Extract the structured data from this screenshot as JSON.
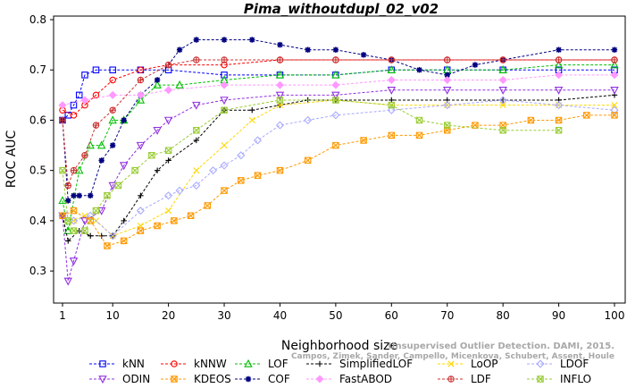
{
  "chart_data": {
    "type": "line",
    "title": "Pima_withoutdupl_02_v02",
    "xlabel": "Neighborhood size",
    "ylabel": "ROC AUC",
    "xlim": [
      1,
      100
    ],
    "ylim": [
      0.27,
      0.8
    ],
    "xticks": [
      "1",
      "10",
      "20",
      "30",
      "40",
      "50",
      "60",
      "70",
      "80",
      "90",
      "100"
    ],
    "yticks": [
      "0.3",
      "0.4",
      "0.5",
      "0.6",
      "0.7",
      "0.8"
    ],
    "credit_line1": "Unsupervised Outlier Detection. DAMI, 2015.",
    "credit_line2": "Campos, Zimek, Sander, Campello, Micenkova, Schubert, Assent, Houle",
    "series": [
      {
        "name": "kNN",
        "color": "#0000ff",
        "marker": "square",
        "points": [
          [
            1,
            0.6
          ],
          [
            2,
            0.61
          ],
          [
            3,
            0.63
          ],
          [
            4,
            0.65
          ],
          [
            5,
            0.69
          ],
          [
            7,
            0.7
          ],
          [
            10,
            0.7
          ],
          [
            15,
            0.7
          ],
          [
            20,
            0.7
          ],
          [
            30,
            0.69
          ],
          [
            40,
            0.69
          ],
          [
            50,
            0.69
          ],
          [
            60,
            0.7
          ],
          [
            70,
            0.7
          ],
          [
            80,
            0.7
          ],
          [
            90,
            0.7
          ],
          [
            100,
            0.7
          ]
        ]
      },
      {
        "name": "kNNW",
        "color": "#ff0000",
        "marker": "circle",
        "points": [
          [
            1,
            0.62
          ],
          [
            3,
            0.61
          ],
          [
            5,
            0.63
          ],
          [
            7,
            0.65
          ],
          [
            10,
            0.68
          ],
          [
            15,
            0.7
          ],
          [
            20,
            0.71
          ],
          [
            30,
            0.71
          ],
          [
            40,
            0.72
          ],
          [
            50,
            0.72
          ],
          [
            60,
            0.72
          ],
          [
            70,
            0.72
          ],
          [
            80,
            0.72
          ],
          [
            90,
            0.72
          ],
          [
            100,
            0.72
          ]
        ]
      },
      {
        "name": "LOF",
        "color": "#00c000",
        "marker": "triangle-up",
        "points": [
          [
            1,
            0.44
          ],
          [
            2,
            0.38
          ],
          [
            4,
            0.5
          ],
          [
            6,
            0.55
          ],
          [
            8,
            0.55
          ],
          [
            10,
            0.6
          ],
          [
            12,
            0.6
          ],
          [
            15,
            0.64
          ],
          [
            18,
            0.67
          ],
          [
            22,
            0.67
          ],
          [
            30,
            0.68
          ],
          [
            40,
            0.69
          ],
          [
            50,
            0.69
          ],
          [
            60,
            0.7
          ],
          [
            70,
            0.7
          ],
          [
            80,
            0.7
          ],
          [
            90,
            0.71
          ],
          [
            100,
            0.71
          ]
        ]
      },
      {
        "name": "SimplifiedLOF",
        "color": "#000000",
        "marker": "plus",
        "points": [
          [
            1,
            0.41
          ],
          [
            2,
            0.36
          ],
          [
            4,
            0.38
          ],
          [
            6,
            0.37
          ],
          [
            8,
            0.37
          ],
          [
            10,
            0.37
          ],
          [
            12,
            0.4
          ],
          [
            15,
            0.45
          ],
          [
            18,
            0.5
          ],
          [
            20,
            0.52
          ],
          [
            25,
            0.56
          ],
          [
            30,
            0.62
          ],
          [
            35,
            0.62
          ],
          [
            40,
            0.63
          ],
          [
            45,
            0.64
          ],
          [
            50,
            0.64
          ],
          [
            60,
            0.64
          ],
          [
            70,
            0.64
          ],
          [
            80,
            0.64
          ],
          [
            90,
            0.64
          ],
          [
            100,
            0.65
          ]
        ]
      },
      {
        "name": "LoOP",
        "color": "#ffd700",
        "marker": "x",
        "points": [
          [
            1,
            0.41
          ],
          [
            3,
            0.4
          ],
          [
            5,
            0.41
          ],
          [
            7,
            0.4
          ],
          [
            10,
            0.37
          ],
          [
            15,
            0.39
          ],
          [
            20,
            0.42
          ],
          [
            25,
            0.5
          ],
          [
            30,
            0.55
          ],
          [
            35,
            0.6
          ],
          [
            40,
            0.63
          ],
          [
            50,
            0.64
          ],
          [
            60,
            0.63
          ],
          [
            70,
            0.63
          ],
          [
            80,
            0.63
          ],
          [
            90,
            0.63
          ],
          [
            100,
            0.63
          ]
        ]
      },
      {
        "name": "LDOF",
        "color": "#aaaaff",
        "marker": "diamond",
        "points": [
          [
            1,
            0.41
          ],
          [
            3,
            0.4
          ],
          [
            6,
            0.41
          ],
          [
            10,
            0.37
          ],
          [
            15,
            0.42
          ],
          [
            20,
            0.45
          ],
          [
            22,
            0.46
          ],
          [
            25,
            0.47
          ],
          [
            28,
            0.5
          ],
          [
            30,
            0.51
          ],
          [
            33,
            0.53
          ],
          [
            36,
            0.56
          ],
          [
            40,
            0.59
          ],
          [
            45,
            0.6
          ],
          [
            50,
            0.61
          ],
          [
            60,
            0.62
          ],
          [
            70,
            0.63
          ],
          [
            80,
            0.64
          ],
          [
            90,
            0.63
          ],
          [
            100,
            0.62
          ]
        ]
      },
      {
        "name": "ODIN",
        "color": "#9030e0",
        "marker": "triangle-down",
        "points": [
          [
            1,
            0.41
          ],
          [
            2,
            0.28
          ],
          [
            3,
            0.32
          ],
          [
            5,
            0.4
          ],
          [
            8,
            0.42
          ],
          [
            10,
            0.47
          ],
          [
            12,
            0.51
          ],
          [
            15,
            0.55
          ],
          [
            18,
            0.58
          ],
          [
            20,
            0.6
          ],
          [
            25,
            0.63
          ],
          [
            30,
            0.64
          ],
          [
            40,
            0.65
          ],
          [
            50,
            0.65
          ],
          [
            60,
            0.66
          ],
          [
            70,
            0.66
          ],
          [
            80,
            0.66
          ],
          [
            90,
            0.66
          ],
          [
            100,
            0.66
          ]
        ]
      },
      {
        "name": "KDEOS",
        "color": "#ff9900",
        "marker": "square-x",
        "points": [
          [
            1,
            0.41
          ],
          [
            3,
            0.42
          ],
          [
            6,
            0.4
          ],
          [
            9,
            0.35
          ],
          [
            12,
            0.36
          ],
          [
            15,
            0.38
          ],
          [
            18,
            0.39
          ],
          [
            21,
            0.4
          ],
          [
            24,
            0.41
          ],
          [
            27,
            0.43
          ],
          [
            30,
            0.46
          ],
          [
            33,
            0.48
          ],
          [
            36,
            0.49
          ],
          [
            40,
            0.5
          ],
          [
            45,
            0.52
          ],
          [
            50,
            0.55
          ],
          [
            55,
            0.56
          ],
          [
            60,
            0.57
          ],
          [
            65,
            0.57
          ],
          [
            70,
            0.58
          ],
          [
            75,
            0.59
          ],
          [
            80,
            0.59
          ],
          [
            85,
            0.6
          ],
          [
            90,
            0.6
          ],
          [
            95,
            0.61
          ],
          [
            100,
            0.61
          ]
        ]
      },
      {
        "name": "COF",
        "color": "#000080",
        "marker": "star",
        "points": [
          [
            1,
            0.6
          ],
          [
            2,
            0.44
          ],
          [
            3,
            0.45
          ],
          [
            4,
            0.45
          ],
          [
            6,
            0.45
          ],
          [
            8,
            0.52
          ],
          [
            10,
            0.55
          ],
          [
            12,
            0.6
          ],
          [
            15,
            0.65
          ],
          [
            18,
            0.68
          ],
          [
            22,
            0.74
          ],
          [
            25,
            0.76
          ],
          [
            30,
            0.76
          ],
          [
            35,
            0.76
          ],
          [
            40,
            0.75
          ],
          [
            45,
            0.74
          ],
          [
            50,
            0.74
          ],
          [
            55,
            0.73
          ],
          [
            60,
            0.72
          ],
          [
            65,
            0.7
          ],
          [
            70,
            0.69
          ],
          [
            75,
            0.71
          ],
          [
            80,
            0.72
          ],
          [
            90,
            0.74
          ],
          [
            100,
            0.74
          ]
        ]
      },
      {
        "name": "FastABOD",
        "color": "#ff99ff",
        "marker": "diamond-filled",
        "points": [
          [
            1,
            0.63
          ],
          [
            5,
            0.64
          ],
          [
            10,
            0.65
          ],
          [
            15,
            0.65
          ],
          [
            20,
            0.66
          ],
          [
            30,
            0.67
          ],
          [
            40,
            0.67
          ],
          [
            50,
            0.67
          ],
          [
            60,
            0.68
          ],
          [
            70,
            0.68
          ],
          [
            80,
            0.68
          ],
          [
            90,
            0.69
          ],
          [
            100,
            0.69
          ]
        ]
      },
      {
        "name": "LDF",
        "color": "#cc3333",
        "marker": "circle-plus",
        "points": [
          [
            1,
            0.6
          ],
          [
            2,
            0.47
          ],
          [
            3,
            0.5
          ],
          [
            5,
            0.53
          ],
          [
            7,
            0.59
          ],
          [
            10,
            0.62
          ],
          [
            15,
            0.68
          ],
          [
            20,
            0.71
          ],
          [
            25,
            0.72
          ],
          [
            30,
            0.72
          ],
          [
            40,
            0.72
          ],
          [
            50,
            0.72
          ],
          [
            60,
            0.72
          ],
          [
            70,
            0.72
          ],
          [
            80,
            0.72
          ],
          [
            90,
            0.72
          ],
          [
            100,
            0.72
          ]
        ]
      },
      {
        "name": "INFLO",
        "color": "#99cc33",
        "marker": "hourglass",
        "points": [
          [
            1,
            0.5
          ],
          [
            2,
            0.4
          ],
          [
            3,
            0.38
          ],
          [
            5,
            0.38
          ],
          [
            7,
            0.42
          ],
          [
            9,
            0.45
          ],
          [
            11,
            0.47
          ],
          [
            14,
            0.5
          ],
          [
            17,
            0.53
          ],
          [
            20,
            0.54
          ],
          [
            25,
            0.58
          ],
          [
            30,
            0.62
          ],
          [
            40,
            0.64
          ],
          [
            50,
            0.64
          ],
          [
            60,
            0.63
          ],
          [
            65,
            0.6
          ],
          [
            70,
            0.59
          ],
          [
            80,
            0.58
          ],
          [
            90,
            0.58
          ]
        ]
      }
    ],
    "legend_rows": [
      [
        "kNN",
        "kNNW",
        "LOF",
        "SimplifiedLOF",
        "LoOP",
        "LDOF"
      ],
      [
        "ODIN",
        "KDEOS",
        "COF",
        "FastABOD",
        "LDF",
        "INFLO"
      ]
    ]
  }
}
